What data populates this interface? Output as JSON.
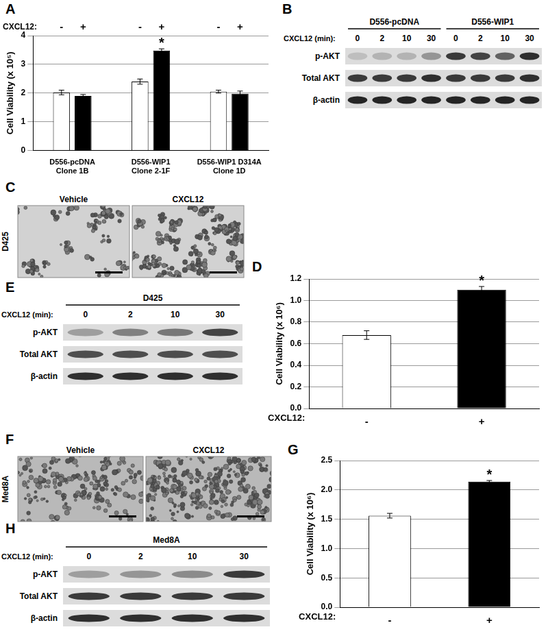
{
  "chart_data": [
    {
      "panel": "A",
      "type": "bar",
      "categories": [
        [
          "D556-pcDNA",
          "Clone 1B"
        ],
        [
          "D556-WIP1",
          "Clone 2-1F"
        ],
        [
          "D556-WIP1 D314A",
          "Clone 1D"
        ]
      ],
      "legend_title": "CXCL12:",
      "series": [
        {
          "name": "-",
          "color": "#ffffff",
          "values": [
            2.02,
            2.4,
            2.05
          ],
          "errors": [
            0.08,
            0.09,
            0.05
          ]
        },
        {
          "name": "+",
          "color": "#000000",
          "values": [
            1.9,
            3.48,
            1.98
          ],
          "errors": [
            0.05,
            0.06,
            0.09
          ]
        }
      ],
      "y_label": "Cell Viability (x 10⁵)",
      "ylim": [
        0,
        4
      ],
      "yticks": [
        0,
        1,
        2,
        3,
        4
      ],
      "grid": true,
      "annotations": [
        {
          "text": "*",
          "series": 1,
          "category": 1
        }
      ]
    },
    {
      "panel": "D",
      "type": "bar",
      "categories": [
        "-",
        "+"
      ],
      "x_label": "CXCL12:",
      "values": [
        0.68,
        1.1
      ],
      "errors": [
        0.04,
        0.03
      ],
      "colors": [
        "#ffffff",
        "#000000"
      ],
      "y_label": "Cell Viability (x 10⁶)",
      "ylim": [
        0,
        1.2
      ],
      "yticks": [
        {
          "value": 0,
          "label": "0.0"
        },
        0.2,
        0.4,
        0.6,
        0.8,
        {
          "value": 1,
          "label": "1.0"
        },
        1.2
      ],
      "grid": true,
      "annotations": [
        {
          "text": "*",
          "category": 1
        }
      ]
    },
    {
      "panel": "G",
      "type": "bar",
      "categories": [
        "-",
        "+"
      ],
      "x_label": "CXCL12:",
      "values": [
        1.56,
        2.14
      ],
      "errors": [
        0.04,
        0.02
      ],
      "colors": [
        "#ffffff",
        "#000000"
      ],
      "y_label": "Cell Viability (x 10⁶)",
      "ylim": [
        0,
        2.5
      ],
      "yticks": [
        {
          "value": 0,
          "label": "0.0"
        },
        0.5,
        {
          "value": 1,
          "label": "1.0"
        },
        1.5,
        {
          "value": 2,
          "label": "2.0"
        },
        2.5
      ],
      "grid": true,
      "annotations": [
        {
          "text": "*",
          "category": 1
        }
      ]
    }
  ],
  "blots": [
    {
      "panel": "B",
      "time_label": "CXCL12 (min):",
      "groups": [
        {
          "label": "D556-pcDNA",
          "times": [
            "0",
            "2",
            "10",
            "30"
          ]
        },
        {
          "label": "D556-WIP1",
          "times": [
            "0",
            "2",
            "10",
            "30"
          ]
        }
      ],
      "rows": [
        {
          "label": "p-AKT",
          "intensity": [
            0.15,
            0.2,
            0.2,
            0.35,
            0.8,
            0.75,
            0.6,
            0.85
          ]
        },
        {
          "label": "Total AKT",
          "intensity": [
            0.8,
            0.8,
            0.8,
            0.85,
            0.8,
            0.8,
            0.8,
            0.85
          ]
        },
        {
          "label": "β-actin",
          "intensity": [
            0.9,
            0.9,
            0.9,
            0.9,
            0.9,
            0.9,
            0.9,
            0.9
          ]
        }
      ]
    },
    {
      "panel": "E",
      "time_label": "CXCL12 (min):",
      "groups": [
        {
          "label": "D425",
          "times": [
            "0",
            "2",
            "10",
            "30"
          ]
        }
      ],
      "rows": [
        {
          "label": "p-AKT",
          "intensity": [
            0.3,
            0.45,
            0.5,
            0.75
          ]
        },
        {
          "label": "Total AKT",
          "intensity": [
            0.7,
            0.7,
            0.7,
            0.7
          ]
        },
        {
          "label": "β-actin",
          "intensity": [
            0.85,
            0.85,
            0.85,
            0.85
          ]
        }
      ]
    },
    {
      "panel": "H",
      "time_label": "CXCL12 (min):",
      "groups": [
        {
          "label": "Med8A",
          "times": [
            "0",
            "2",
            "10",
            "30"
          ]
        }
      ],
      "rows": [
        {
          "label": "p-AKT",
          "intensity": [
            0.3,
            0.35,
            0.4,
            0.8
          ]
        },
        {
          "label": "Total AKT",
          "intensity": [
            0.8,
            0.8,
            0.8,
            0.8
          ]
        },
        {
          "label": "β-actin",
          "intensity": [
            0.85,
            0.85,
            0.85,
            0.85
          ]
        }
      ]
    }
  ],
  "micrographs": [
    {
      "panel": "C",
      "cell_line": "D425",
      "images": [
        {
          "label": "Vehicle"
        },
        {
          "label": "CXCL12"
        }
      ]
    },
    {
      "panel": "F",
      "cell_line": "Med8A",
      "images": [
        {
          "label": "Vehicle"
        },
        {
          "label": "CXCL12"
        }
      ]
    }
  ]
}
